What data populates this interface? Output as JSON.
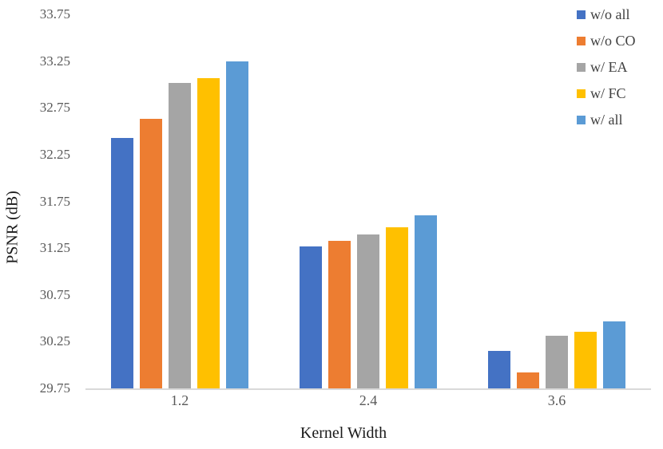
{
  "chart_data": {
    "type": "bar",
    "title": "",
    "xlabel": "Kernel Width",
    "ylabel": "PSNR (dB)",
    "categories": [
      "1.2",
      "2.4",
      "3.6"
    ],
    "series": [
      {
        "name": "w/o all",
        "color": "#4472C4",
        "values": [
          32.43,
          31.27,
          30.15
        ]
      },
      {
        "name": "w/o CO",
        "color": "#ED7D31",
        "values": [
          32.63,
          31.33,
          29.92
        ]
      },
      {
        "name": "w/ EA",
        "color": "#A5A5A5",
        "values": [
          33.02,
          31.4,
          30.31
        ]
      },
      {
        "name": "w/ FC",
        "color": "#FFC000",
        "values": [
          33.07,
          31.47,
          30.36
        ]
      },
      {
        "name": "w/ all",
        "color": "#5B9BD5",
        "values": [
          33.25,
          31.6,
          30.47
        ]
      }
    ],
    "ylim": [
      29.75,
      33.75
    ],
    "y_ticks": [
      "29.75",
      "30.25",
      "30.75",
      "31.25",
      "31.75",
      "32.25",
      "32.75",
      "33.25",
      "33.75"
    ],
    "grid": false,
    "legend_position": "top-right",
    "axis_line_color": "#D9D9D9",
    "tick_label_color": "#595959",
    "axis_title_color": "#1A1A1A"
  }
}
